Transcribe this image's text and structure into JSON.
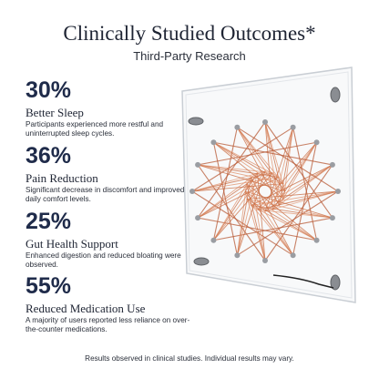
{
  "header": {
    "title": "Clinically Studied Outcomes*",
    "subtitle": "Third-Party Research"
  },
  "stats": [
    {
      "value": "30%",
      "label": "Better Sleep",
      "description": "Participants experienced more restful and uninterrupted sleep cycles."
    },
    {
      "value": "36%",
      "label": "Pain Reduction",
      "description": "Significant decrease in discomfort and improved daily comfort levels."
    },
    {
      "value": "25%",
      "label": "Gut Health Support",
      "description": "Enhanced digestion and reduced bloating were observed."
    },
    {
      "value": "55%",
      "label": "Reduced Medication Use",
      "description": "A majority of users reported less reliance on over-the-counter medications."
    }
  ],
  "footer": "Results observed in clinical studies. Individual results may vary."
}
